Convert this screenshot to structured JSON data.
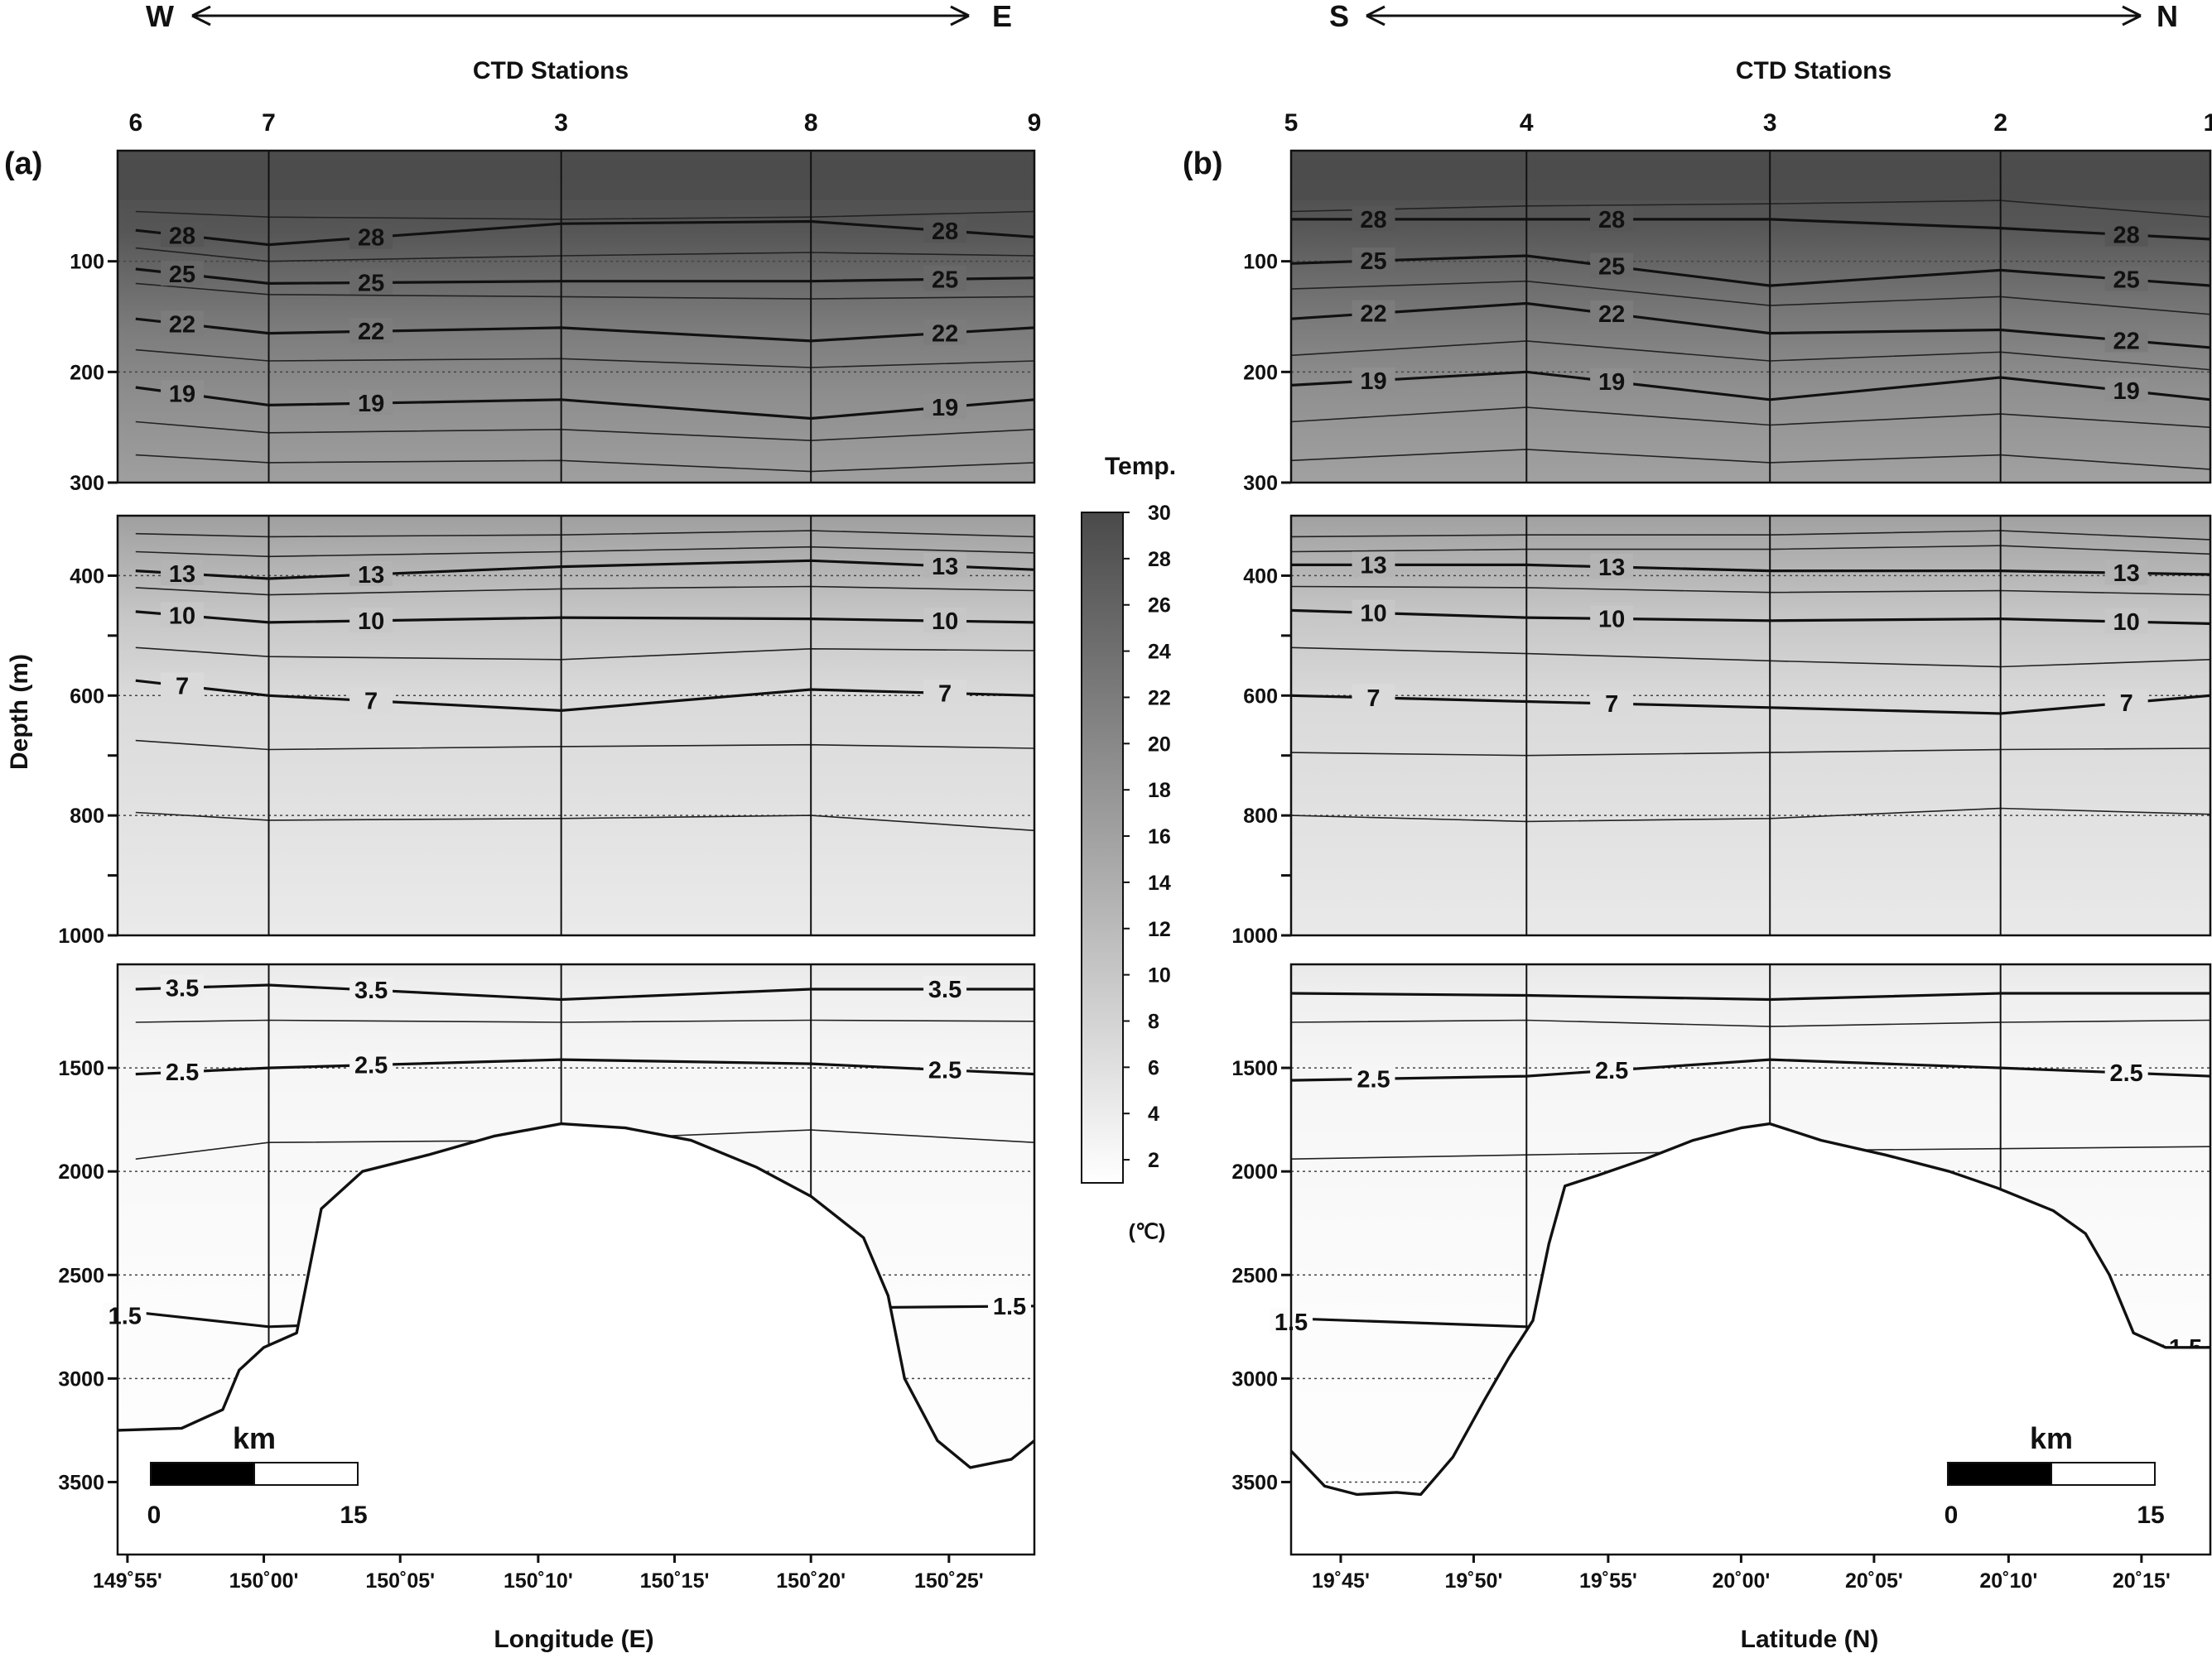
{
  "chart_data": [
    {
      "type": "contour",
      "panel_label": "(a)",
      "direction": {
        "left": "W",
        "right": "E"
      },
      "top_axis_title": "CTD Stations",
      "stations": [
        {
          "name": "6",
          "x": 149.922
        },
        {
          "name": "7",
          "x": 150.003
        },
        {
          "name": "3",
          "x": 150.181
        },
        {
          "name": "8",
          "x": 150.333
        },
        {
          "name": "9",
          "x": 150.469
        }
      ],
      "xlabel": "Longitude (E)",
      "xlim": [
        149.911,
        150.469
      ],
      "xticks": [
        {
          "value": 149.917,
          "label": "149˚55'"
        },
        {
          "value": 150.0,
          "label": "150˚00'"
        },
        {
          "value": 150.083,
          "label": "150˚05'"
        },
        {
          "value": 150.167,
          "label": "150˚10'"
        },
        {
          "value": 150.25,
          "label": "150˚15'"
        },
        {
          "value": 150.333,
          "label": "150˚20'"
        },
        {
          "value": 150.417,
          "label": "150˚25'"
        }
      ],
      "ylabel": "Depth (m)",
      "depth_ticks": [
        100,
        200,
        300,
        400,
        600,
        800,
        1000,
        1500,
        2000,
        2500,
        3000,
        3500
      ],
      "scale_bar": {
        "label": "km",
        "start": "0",
        "end": "15"
      },
      "labeled_isotherms": [
        {
          "value": 28,
          "label": "28",
          "depths": [
            72,
            85,
            66,
            64,
            78
          ]
        },
        {
          "value": 25,
          "label": "25",
          "depths": [
            107,
            120,
            118,
            118,
            115
          ]
        },
        {
          "value": 22,
          "label": "22",
          "depths": [
            152,
            165,
            160,
            172,
            160
          ]
        },
        {
          "value": 19,
          "label": "19",
          "depths": [
            214,
            230,
            225,
            242,
            225
          ]
        },
        {
          "value": 13,
          "label": "13",
          "depths": [
            392,
            405,
            385,
            375,
            390
          ]
        },
        {
          "value": 10,
          "label": "10",
          "depths": [
            460,
            478,
            470,
            472,
            478
          ]
        },
        {
          "value": 7,
          "label": "7",
          "depths": [
            575,
            600,
            625,
            590,
            600
          ]
        },
        {
          "value": 3.5,
          "label": "3.5",
          "depths": [
            1120,
            1100,
            1170,
            1120,
            1120
          ]
        },
        {
          "value": 2.5,
          "label": "2.5",
          "depths": [
            1530,
            1500,
            1460,
            1480,
            1530
          ]
        },
        {
          "value": 1.5,
          "label": "1.5",
          "depths": [
            2680,
            2750,
            null,
            2660,
            2650
          ]
        }
      ],
      "thin_isotherm_depths": [
        [
          55,
          60,
          62,
          60,
          55
        ],
        [
          88,
          100,
          95,
          92,
          95
        ],
        [
          120,
          130,
          132,
          134,
          132
        ],
        [
          180,
          190,
          188,
          196,
          190
        ],
        [
          245,
          255,
          252,
          262,
          252
        ],
        [
          275,
          282,
          280,
          290,
          282
        ],
        [
          330,
          335,
          332,
          325,
          335
        ],
        [
          360,
          368,
          360,
          352,
          362
        ],
        [
          420,
          432,
          422,
          418,
          425
        ],
        [
          520,
          535,
          540,
          522,
          525
        ],
        [
          675,
          690,
          685,
          682,
          688
        ],
        [
          795,
          808,
          805,
          800,
          825
        ],
        [
          1280,
          1270,
          1280,
          1270,
          1275
        ],
        [
          1940,
          1860,
          1850,
          1800,
          1860
        ]
      ],
      "bathymetry": [
        [
          149.911,
          3250
        ],
        [
          149.95,
          3240
        ],
        [
          149.975,
          3150
        ],
        [
          149.985,
          2960
        ],
        [
          150.0,
          2850
        ],
        [
          150.02,
          2780
        ],
        [
          150.035,
          2180
        ],
        [
          150.06,
          2000
        ],
        [
          150.1,
          1920
        ],
        [
          150.14,
          1830
        ],
        [
          150.181,
          1770
        ],
        [
          150.22,
          1790
        ],
        [
          150.26,
          1850
        ],
        [
          150.3,
          1980
        ],
        [
          150.333,
          2120
        ],
        [
          150.365,
          2320
        ],
        [
          150.38,
          2600
        ],
        [
          150.39,
          3000
        ],
        [
          150.41,
          3300
        ],
        [
          150.43,
          3430
        ],
        [
          150.455,
          3390
        ],
        [
          150.469,
          3300
        ]
      ]
    },
    {
      "type": "contour",
      "panel_label": "(b)",
      "direction": {
        "left": "S",
        "right": "N"
      },
      "top_axis_title": "CTD Stations",
      "stations": [
        {
          "name": "5",
          "x": 19.719
        },
        {
          "name": "4",
          "x": 19.866
        },
        {
          "name": "3",
          "x": 20.018
        },
        {
          "name": "2",
          "x": 20.162
        },
        {
          "name": "1",
          "x": 20.293
        }
      ],
      "xlabel": "Latitude (N)",
      "xlim": [
        19.719,
        20.293
      ],
      "xticks": [
        {
          "value": 19.75,
          "label": "19˚45'"
        },
        {
          "value": 19.833,
          "label": "19˚50'"
        },
        {
          "value": 19.917,
          "label": "19˚55'"
        },
        {
          "value": 20.0,
          "label": "20˚00'"
        },
        {
          "value": 20.083,
          "label": "20˚05'"
        },
        {
          "value": 20.167,
          "label": "20˚10'"
        },
        {
          "value": 20.25,
          "label": "20˚15'"
        }
      ],
      "ylabel": "",
      "depth_ticks": [
        100,
        200,
        300,
        400,
        600,
        800,
        1000,
        1500,
        2000,
        2500,
        3000,
        3500
      ],
      "scale_bar": {
        "label": "km",
        "start": "0",
        "end": "15"
      },
      "labeled_isotherms": [
        {
          "value": 28,
          "label": "28",
          "depths": [
            62,
            62,
            62,
            70,
            80
          ]
        },
        {
          "value": 25,
          "label": "25",
          "depths": [
            102,
            95,
            122,
            108,
            122
          ]
        },
        {
          "value": 22,
          "label": "22",
          "depths": [
            152,
            138,
            165,
            162,
            178
          ]
        },
        {
          "value": 19,
          "label": "19",
          "depths": [
            212,
            200,
            225,
            205,
            225
          ]
        },
        {
          "value": 13,
          "label": "13",
          "depths": [
            382,
            382,
            392,
            392,
            398
          ]
        },
        {
          "value": 10,
          "label": "10",
          "depths": [
            458,
            470,
            475,
            472,
            480
          ]
        },
        {
          "value": 7,
          "label": "7",
          "depths": [
            600,
            610,
            620,
            630,
            600
          ]
        },
        {
          "value": 3.5,
          "label": "",
          "depths": [
            1140,
            1150,
            1170,
            1140,
            1140
          ]
        },
        {
          "value": 2.5,
          "label": "2.5",
          "depths": [
            1560,
            1540,
            1460,
            1500,
            1540
          ]
        },
        {
          "value": 1.5,
          "label": "1.5",
          "depths": [
            2710,
            2750,
            null,
            null,
            2850
          ]
        }
      ],
      "thin_isotherm_depths": [
        [
          55,
          50,
          48,
          45,
          60
        ],
        [
          125,
          118,
          140,
          132,
          148
        ],
        [
          185,
          172,
          190,
          182,
          198
        ],
        [
          245,
          232,
          248,
          238,
          250
        ],
        [
          280,
          270,
          282,
          275,
          288
        ],
        [
          335,
          332,
          332,
          325,
          340
        ],
        [
          360,
          356,
          356,
          350,
          364
        ],
        [
          418,
          420,
          428,
          425,
          432
        ],
        [
          520,
          530,
          542,
          552,
          540
        ],
        [
          695,
          700,
          695,
          690,
          688
        ],
        [
          800,
          810,
          805,
          788,
          798
        ],
        [
          1280,
          1270,
          1300,
          1280,
          1270
        ],
        [
          1940,
          1920,
          1900,
          1890,
          1880
        ]
      ],
      "bathymetry": [
        [
          19.719,
          3350
        ],
        [
          19.74,
          3520
        ],
        [
          19.76,
          3560
        ],
        [
          19.785,
          3550
        ],
        [
          19.8,
          3560
        ],
        [
          19.82,
          3380
        ],
        [
          19.84,
          3100
        ],
        [
          19.855,
          2900
        ],
        [
          19.87,
          2720
        ],
        [
          19.88,
          2350
        ],
        [
          19.89,
          2070
        ],
        [
          19.91,
          2020
        ],
        [
          19.94,
          1940
        ],
        [
          19.97,
          1850
        ],
        [
          20.0,
          1790
        ],
        [
          20.018,
          1770
        ],
        [
          20.05,
          1850
        ],
        [
          20.09,
          1920
        ],
        [
          20.13,
          2000
        ],
        [
          20.16,
          2080
        ],
        [
          20.195,
          2190
        ],
        [
          20.215,
          2300
        ],
        [
          20.23,
          2500
        ],
        [
          20.245,
          2780
        ],
        [
          20.265,
          2850
        ],
        [
          20.293,
          2850
        ]
      ]
    }
  ],
  "colorbar": {
    "title": "Temp.",
    "unit": "(℃)",
    "range": [
      1,
      30
    ],
    "ticks": [
      "2",
      "4",
      "6",
      "8",
      "10",
      "12",
      "14",
      "16",
      "18",
      "20",
      "22",
      "24",
      "26",
      "28",
      "30"
    ],
    "color_low": "#ffffff",
    "color_high": "#4a4a4a"
  }
}
